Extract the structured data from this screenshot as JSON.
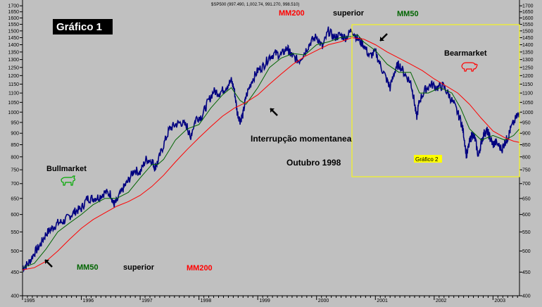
{
  "chart_data": {
    "type": "line",
    "header": "$SP500 (997.490, 1,002.74, 991.270, 998.510)",
    "ylim": [
      400,
      1750
    ],
    "y_scale": "log",
    "y_ticks": [
      400,
      450,
      500,
      550,
      600,
      650,
      700,
      750,
      800,
      850,
      900,
      950,
      1000,
      1050,
      1100,
      1150,
      1200,
      1250,
      1300,
      1350,
      1400,
      1450,
      1500,
      1550,
      1600,
      1650,
      1700
    ],
    "xlim": [
      1995.0,
      2003.45
    ],
    "x_ticks": [
      "1995",
      "1996",
      "1997",
      "1998",
      "1999",
      "2000",
      "2001",
      "2002",
      "2003"
    ],
    "grid": false,
    "series": [
      {
        "name": "$SP500",
        "color": "#000080",
        "points": [
          [
            1995.0,
            460
          ],
          [
            1995.1,
            470
          ],
          [
            1995.2,
            495
          ],
          [
            1995.3,
            515
          ],
          [
            1995.4,
            545
          ],
          [
            1995.5,
            560
          ],
          [
            1995.6,
            575
          ],
          [
            1995.7,
            580
          ],
          [
            1995.8,
            595
          ],
          [
            1995.9,
            610
          ],
          [
            1996.0,
            618
          ],
          [
            1996.1,
            650
          ],
          [
            1996.2,
            650
          ],
          [
            1996.3,
            655
          ],
          [
            1996.4,
            670
          ],
          [
            1996.5,
            665
          ],
          [
            1996.55,
            630
          ],
          [
            1996.6,
            640
          ],
          [
            1996.7,
            680
          ],
          [
            1996.8,
            710
          ],
          [
            1996.9,
            750
          ],
          [
            1997.0,
            740
          ],
          [
            1997.1,
            790
          ],
          [
            1997.2,
            785
          ],
          [
            1997.25,
            760
          ],
          [
            1997.3,
            780
          ],
          [
            1997.4,
            850
          ],
          [
            1997.5,
            920
          ],
          [
            1997.6,
            940
          ],
          [
            1997.7,
            950
          ],
          [
            1997.8,
            930
          ],
          [
            1997.85,
            880
          ],
          [
            1997.95,
            970
          ],
          [
            1998.05,
            980
          ],
          [
            1998.15,
            1050
          ],
          [
            1998.25,
            1110
          ],
          [
            1998.35,
            1100
          ],
          [
            1998.45,
            1130
          ],
          [
            1998.55,
            1170
          ],
          [
            1998.6,
            1120
          ],
          [
            1998.65,
            1000
          ],
          [
            1998.7,
            960
          ],
          [
            1998.75,
            990
          ],
          [
            1998.8,
            1080
          ],
          [
            1998.9,
            1170
          ],
          [
            1999.0,
            1230
          ],
          [
            1999.1,
            1260
          ],
          [
            1999.2,
            1320
          ],
          [
            1999.3,
            1340
          ],
          [
            1999.4,
            1330
          ],
          [
            1999.5,
            1380
          ],
          [
            1999.55,
            1340
          ],
          [
            1999.6,
            1320
          ],
          [
            1999.7,
            1290
          ],
          [
            1999.8,
            1350
          ],
          [
            1999.9,
            1420
          ],
          [
            2000.0,
            1460
          ],
          [
            2000.1,
            1380
          ],
          [
            2000.2,
            1500
          ],
          [
            2000.3,
            1450
          ],
          [
            2000.4,
            1470
          ],
          [
            2000.5,
            1450
          ],
          [
            2000.6,
            1510
          ],
          [
            2000.7,
            1440
          ],
          [
            2000.8,
            1400
          ],
          [
            2000.9,
            1320
          ],
          [
            2001.0,
            1350
          ],
          [
            2001.1,
            1250
          ],
          [
            2001.2,
            1170
          ],
          [
            2001.25,
            1130
          ],
          [
            2001.35,
            1250
          ],
          [
            2001.4,
            1270
          ],
          [
            2001.5,
            1210
          ],
          [
            2001.6,
            1160
          ],
          [
            2001.65,
            1080
          ],
          [
            2001.7,
            970
          ],
          [
            2001.75,
            1060
          ],
          [
            2001.85,
            1120
          ],
          [
            2001.95,
            1150
          ],
          [
            2002.05,
            1130
          ],
          [
            2002.15,
            1140
          ],
          [
            2002.25,
            1090
          ],
          [
            2002.35,
            1030
          ],
          [
            2002.45,
            960
          ],
          [
            2002.5,
            900
          ],
          [
            2002.55,
            800
          ],
          [
            2002.6,
            860
          ],
          [
            2002.65,
            900
          ],
          [
            2002.7,
            870
          ],
          [
            2002.75,
            800
          ],
          [
            2002.8,
            860
          ],
          [
            2002.85,
            900
          ],
          [
            2002.9,
            910
          ],
          [
            2002.95,
            880
          ],
          [
            2003.0,
            850
          ],
          [
            2003.05,
            860
          ],
          [
            2003.15,
            830
          ],
          [
            2003.2,
            860
          ],
          [
            2003.25,
            880
          ],
          [
            2003.3,
            920
          ],
          [
            2003.4,
            975
          ],
          [
            2003.45,
            998
          ]
        ]
      },
      {
        "name": "MM50",
        "color": "#006400",
        "points": [
          [
            1995.0,
            460
          ],
          [
            1995.2,
            470
          ],
          [
            1995.4,
            505
          ],
          [
            1995.6,
            550
          ],
          [
            1995.8,
            575
          ],
          [
            1996.0,
            600
          ],
          [
            1996.2,
            630
          ],
          [
            1996.4,
            650
          ],
          [
            1996.6,
            650
          ],
          [
            1996.8,
            670
          ],
          [
            1997.0,
            720
          ],
          [
            1997.2,
            770
          ],
          [
            1997.3,
            770
          ],
          [
            1997.4,
            790
          ],
          [
            1997.6,
            870
          ],
          [
            1997.8,
            920
          ],
          [
            1998.0,
            940
          ],
          [
            1998.2,
            1020
          ],
          [
            1998.4,
            1090
          ],
          [
            1998.55,
            1130
          ],
          [
            1998.7,
            1060
          ],
          [
            1998.8,
            1040
          ],
          [
            1999.0,
            1130
          ],
          [
            1999.2,
            1250
          ],
          [
            1999.4,
            1310
          ],
          [
            1999.6,
            1340
          ],
          [
            1999.8,
            1330
          ],
          [
            2000.0,
            1400
          ],
          [
            2000.2,
            1420
          ],
          [
            2000.4,
            1450
          ],
          [
            2000.6,
            1460
          ],
          [
            2000.7,
            1470
          ],
          [
            2000.8,
            1420
          ],
          [
            2001.0,
            1360
          ],
          [
            2001.2,
            1270
          ],
          [
            2001.4,
            1220
          ],
          [
            2001.6,
            1220
          ],
          [
            2001.75,
            1100
          ],
          [
            2001.9,
            1100
          ],
          [
            2002.1,
            1130
          ],
          [
            2002.3,
            1100
          ],
          [
            2002.45,
            1020
          ],
          [
            2002.6,
            920
          ],
          [
            2002.8,
            870
          ],
          [
            2003.0,
            890
          ],
          [
            2003.2,
            870
          ],
          [
            2003.35,
            890
          ],
          [
            2003.45,
            920
          ]
        ]
      },
      {
        "name": "MM200",
        "color": "#ff0000",
        "points": [
          [
            1995.0,
            455
          ],
          [
            1995.2,
            460
          ],
          [
            1995.4,
            475
          ],
          [
            1995.6,
            500
          ],
          [
            1995.8,
            530
          ],
          [
            1996.0,
            560
          ],
          [
            1996.2,
            585
          ],
          [
            1996.4,
            605
          ],
          [
            1996.6,
            625
          ],
          [
            1996.8,
            640
          ],
          [
            1997.0,
            660
          ],
          [
            1997.2,
            690
          ],
          [
            1997.4,
            730
          ],
          [
            1997.6,
            780
          ],
          [
            1997.8,
            830
          ],
          [
            1998.0,
            880
          ],
          [
            1998.2,
            930
          ],
          [
            1998.4,
            980
          ],
          [
            1998.6,
            1020
          ],
          [
            1998.8,
            1050
          ],
          [
            1999.0,
            1090
          ],
          [
            1999.2,
            1150
          ],
          [
            1999.4,
            1210
          ],
          [
            1999.6,
            1270
          ],
          [
            1999.8,
            1320
          ],
          [
            2000.0,
            1360
          ],
          [
            2000.2,
            1400
          ],
          [
            2000.4,
            1420
          ],
          [
            2000.6,
            1450
          ],
          [
            2000.8,
            1440
          ],
          [
            2001.0,
            1400
          ],
          [
            2001.2,
            1350
          ],
          [
            2001.4,
            1310
          ],
          [
            2001.6,
            1270
          ],
          [
            2001.8,
            1230
          ],
          [
            2002.0,
            1180
          ],
          [
            2002.2,
            1140
          ],
          [
            2002.4,
            1100
          ],
          [
            2002.6,
            1040
          ],
          [
            2002.8,
            970
          ],
          [
            2003.0,
            910
          ],
          [
            2003.2,
            880
          ],
          [
            2003.35,
            865
          ],
          [
            2003.45,
            860
          ]
        ]
      }
    ],
    "annotations": {
      "title_box": "Gráfico 1",
      "top_mm200": "MM200",
      "top_superior": "superior",
      "top_mm50": "MM50",
      "bearmarket": "Bearmarket",
      "interrupcao": "Interrupção momentanea",
      "outubro": "Outubro 1998",
      "grafico2": "Gráfico 2",
      "bullmarket": "Bullmarket",
      "bottom_mm50": "MM50",
      "bottom_superior": "superior",
      "bottom_mm200": "MM200"
    },
    "colors": {
      "background": "#c0c0c0",
      "price": "#000080",
      "mm50": "#006400",
      "mm200": "#ff0000",
      "box": "#ffff00",
      "bull": "#00aa00",
      "bear": "#ff0000"
    },
    "icons": [
      "bull-icon",
      "bear-icon",
      "arrow-icon"
    ]
  }
}
